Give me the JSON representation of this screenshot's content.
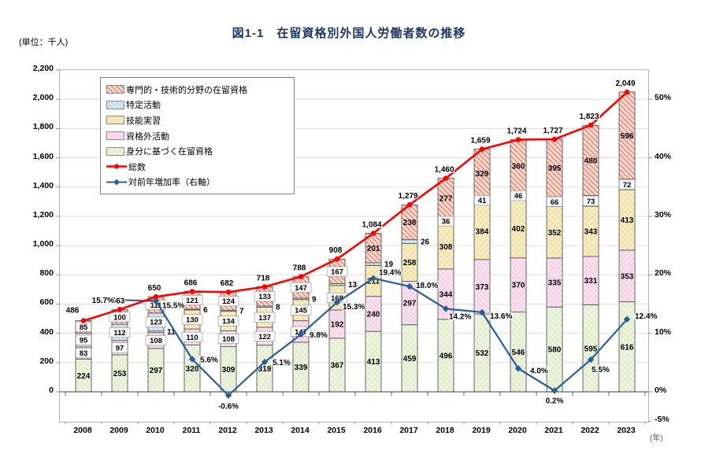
{
  "title": "図1-1　在留資格別外国人労働者数の推移",
  "unit_label": "(単位：千人)",
  "x_axis_suffix": "(年)",
  "chart_data": {
    "type": "bar",
    "subtype": "stacked-bars-with-total-line-and-growth-line",
    "years": [
      2008,
      2009,
      2010,
      2011,
      2012,
      2013,
      2014,
      2015,
      2016,
      2017,
      2018,
      2019,
      2020,
      2021,
      2022,
      2023
    ],
    "series": [
      {
        "key": "status_based",
        "name": "身分に基づく在留資格",
        "values": [
          224,
          253,
          297,
          320,
          309,
          319,
          339,
          367,
          413,
          459,
          496,
          532,
          546,
          580,
          595,
          616
        ]
      },
      {
        "key": "outside_status",
        "name": "資格外活動",
        "values": [
          83,
          97,
          108,
          110,
          108,
          122,
          147,
          192,
          240,
          297,
          344,
          373,
          370,
          335,
          331,
          353
        ]
      },
      {
        "key": "technical_intern",
        "name": "技能実習",
        "values": [
          null,
          null,
          11,
          130,
          134,
          137,
          145,
          168,
          211,
          258,
          308,
          384,
          402,
          352,
          343,
          413
        ]
      },
      {
        "key": "designated",
        "name": "特定活動",
        "values": [
          95,
          112,
          123,
          6,
          7,
          8,
          9,
          13,
          19,
          26,
          36,
          41,
          46,
          66,
          73,
          72
        ]
      },
      {
        "key": "professional",
        "name": "専門的・技術的分野の在留資格",
        "values": [
          85,
          100,
          111,
          121,
          124,
          133,
          147,
          167,
          201,
          238,
          277,
          329,
          360,
          395,
          480,
          596
        ]
      }
    ],
    "totals": {
      "name": "総数",
      "values": [
        486,
        563,
        650,
        686,
        682,
        718,
        788,
        908,
        1084,
        1279,
        1460,
        1659,
        1724,
        1727,
        1823,
        2049
      ],
      "labels": [
        "486",
        "563",
        "650",
        "686",
        "682",
        "718",
        "788",
        "908",
        "1,084",
        "1,279",
        "1,460",
        "1,659",
        "1,724",
        "1,727",
        "1,823",
        "2,049"
      ]
    },
    "growth_rate": {
      "name": "対前年増加率（右軸）",
      "values": [
        null,
        15.7,
        15.5,
        5.6,
        -0.6,
        5.1,
        9.8,
        15.3,
        19.4,
        18.0,
        14.2,
        13.6,
        4.0,
        0.2,
        5.5,
        12.4
      ],
      "labels": [
        "",
        "15.7%",
        "15.5%",
        "5.6%",
        "-0.6%",
        "5.1%",
        "9.8%",
        "15.3%",
        "19.4%",
        "18.0%",
        "14.2%",
        "13.6%",
        "4.0%",
        "0.2%",
        "5.5%",
        "12.4%"
      ]
    },
    "left_axis": {
      "min": 0,
      "max": 2200,
      "step": 200
    },
    "right_axis": {
      "min": -5,
      "max": 55,
      "ticks": [
        50,
        40,
        30,
        20,
        10,
        0,
        -5
      ],
      "suffix": "%"
    },
    "legend": [
      {
        "key": "professional",
        "label": "専門的・技術的分野の在留資格",
        "kind": "pattern"
      },
      {
        "key": "designated",
        "label": "特定活動",
        "kind": "pattern"
      },
      {
        "key": "technical_intern",
        "label": "技能実習",
        "kind": "pattern"
      },
      {
        "key": "outside_status",
        "label": "資格外活動",
        "kind": "pattern"
      },
      {
        "key": "status_based",
        "label": "身分に基づく在留資格",
        "kind": "pattern"
      },
      {
        "key": "total",
        "label": "総数",
        "kind": "line-red"
      },
      {
        "key": "growth",
        "label": "対前年増加率（右軸）",
        "kind": "line-blue"
      }
    ],
    "colors": {
      "professional_bg": "#f8ddd4",
      "professional_fg": "#e2917f",
      "designated_bg": "#dce8f4",
      "designated_fg": "#b5cde4",
      "technical_intern_bg": "#f8eec6",
      "technical_intern_fg": "#e5cf8c",
      "outside_status_bg": "#fbe3f0",
      "outside_status_fg": "#ecb9d7",
      "status_based_bg": "#eef4e0",
      "status_based_fg": "#cfe0b2",
      "total_line": "#fe0000",
      "growth_line": "#2c5d98",
      "title_text": "#1f3864"
    }
  }
}
